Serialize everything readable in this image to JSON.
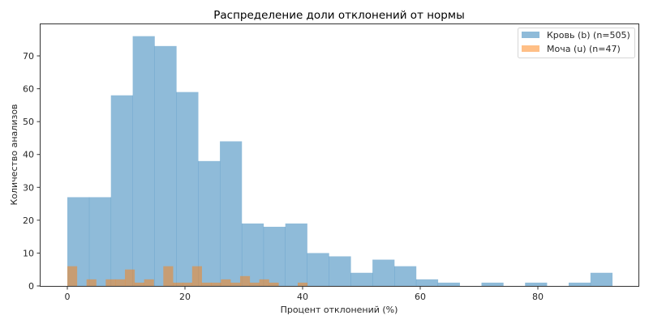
{
  "chart_data": {
    "type": "bar",
    "subtype": "histogram-overlay",
    "title": "Распределение доли отклонений от нормы",
    "xlabel": "Процент отклонений (%)",
    "ylabel": "Количество анализов",
    "xlim": [
      -4.6,
      97.3
    ],
    "ylim": [
      0,
      79.8
    ],
    "xticks": [
      0,
      20,
      40,
      60,
      80
    ],
    "yticks": [
      0,
      10,
      20,
      30,
      40,
      50,
      60,
      70
    ],
    "grid": false,
    "legend_position": "upper right",
    "series": [
      {
        "name": "Кровь (b) (n=505)",
        "color": "#1f77b4",
        "alpha": 0.5,
        "bin_start": 0,
        "bin_end": 92.65,
        "bins": 25,
        "values": [
          27,
          27,
          58,
          76,
          73,
          59,
          38,
          44,
          19,
          18,
          19,
          10,
          9,
          4,
          8,
          6,
          2,
          1,
          0,
          1,
          0,
          1,
          0,
          1,
          4
        ]
      },
      {
        "name": "Моча (u) (n=47)",
        "color": "#ff7f0e",
        "alpha": 0.5,
        "bin_start": 0,
        "bin_end": 40.8,
        "bins": 25,
        "values": [
          6,
          0,
          2,
          0,
          2,
          2,
          5,
          1,
          2,
          0,
          6,
          1,
          1,
          6,
          1,
          1,
          2,
          1,
          3,
          1,
          2,
          1,
          0,
          0,
          1
        ]
      }
    ]
  },
  "legend": {
    "items": [
      {
        "label": "Кровь (b) (n=505)"
      },
      {
        "label": "Моча (u) (n=47)"
      }
    ]
  }
}
